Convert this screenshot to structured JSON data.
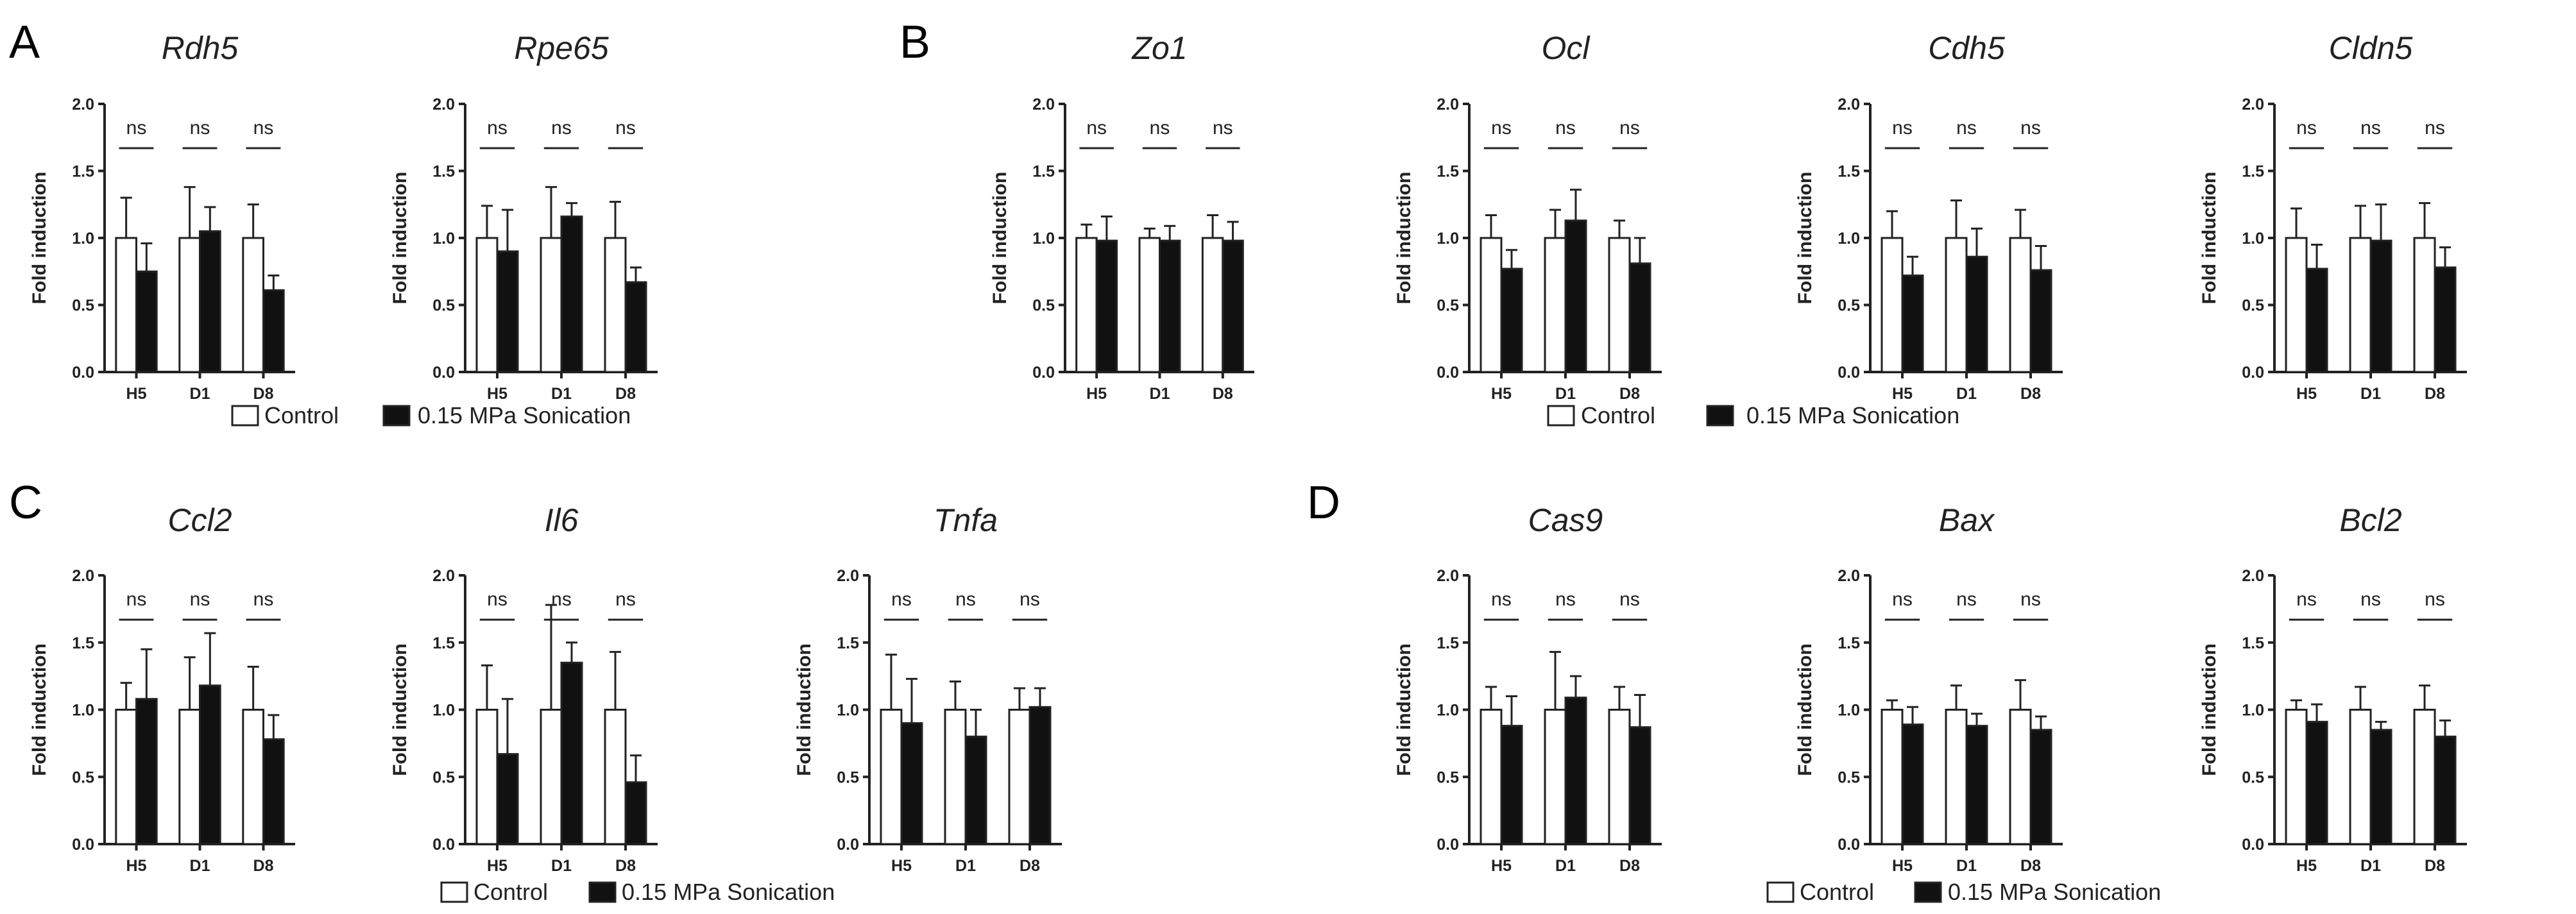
{
  "colors": {
    "control_fill": "#ffffff",
    "treated_fill": "#111111",
    "stroke": "#222222"
  },
  "panel_letters": [
    "A",
    "B",
    "C",
    "D"
  ],
  "legend": {
    "control_label": "Control",
    "treated_label": "0.15 MPa Sonication"
  },
  "chart_data": [
    {
      "type": "bar",
      "panel": "A",
      "title": "Rdh5",
      "ylabel": "Fold induction",
      "ylim": [
        0,
        2.0
      ],
      "yticks": [
        "0.0",
        "0.5",
        "1.0",
        "1.5",
        "2.0"
      ],
      "categories": [
        "H5",
        "D1",
        "D8"
      ],
      "series": [
        {
          "name": "Control",
          "values": [
            1.0,
            1.0,
            1.0
          ],
          "errors": [
            0.3,
            0.38,
            0.25
          ]
        },
        {
          "name": "0.15 MPa Sonication",
          "values": [
            0.75,
            1.05,
            0.61
          ],
          "errors": [
            0.21,
            0.18,
            0.11
          ]
        }
      ],
      "annotations": [
        "ns",
        "ns",
        "ns"
      ]
    },
    {
      "type": "bar",
      "panel": "A",
      "title": "Rpe65",
      "ylabel": "Fold induction",
      "ylim": [
        0,
        2.0
      ],
      "yticks": [
        "0.0",
        "0.5",
        "1.0",
        "1.5",
        "2.0"
      ],
      "categories": [
        "H5",
        "D1",
        "D8"
      ],
      "series": [
        {
          "name": "Control",
          "values": [
            1.0,
            1.0,
            1.0
          ],
          "errors": [
            0.24,
            0.38,
            0.27
          ]
        },
        {
          "name": "0.15 MPa Sonication",
          "values": [
            0.9,
            1.16,
            0.67
          ],
          "errors": [
            0.31,
            0.1,
            0.11
          ]
        }
      ],
      "annotations": [
        "ns",
        "ns",
        "ns"
      ]
    },
    {
      "type": "bar",
      "panel": "B",
      "title": "Zo1",
      "ylabel": "Fold induction",
      "ylim": [
        0,
        2.0
      ],
      "yticks": [
        "0.0",
        "0.5",
        "1.0",
        "1.5",
        "2.0"
      ],
      "categories": [
        "H5",
        "D1",
        "D8"
      ],
      "series": [
        {
          "name": "Control",
          "values": [
            1.0,
            1.0,
            1.0
          ],
          "errors": [
            0.1,
            0.07,
            0.17
          ]
        },
        {
          "name": "0.15 MPa Sonication",
          "values": [
            0.98,
            0.98,
            0.98
          ],
          "errors": [
            0.18,
            0.11,
            0.14
          ]
        }
      ],
      "annotations": [
        "ns",
        "ns",
        "ns"
      ]
    },
    {
      "type": "bar",
      "panel": "B",
      "title": "Ocl",
      "ylabel": "Fold induction",
      "ylim": [
        0,
        2.0
      ],
      "yticks": [
        "0.0",
        "0.5",
        "1.0",
        "1.5",
        "2.0"
      ],
      "categories": [
        "H5",
        "D1",
        "D8"
      ],
      "series": [
        {
          "name": "Control",
          "values": [
            1.0,
            1.0,
            1.0
          ],
          "errors": [
            0.17,
            0.21,
            0.13
          ]
        },
        {
          "name": "0.15 MPa Sonication",
          "values": [
            0.77,
            1.13,
            0.81
          ],
          "errors": [
            0.14,
            0.23,
            0.19
          ]
        }
      ],
      "annotations": [
        "ns",
        "ns",
        "ns"
      ]
    },
    {
      "type": "bar",
      "panel": "B",
      "title": "Cdh5",
      "ylabel": "Fold induction",
      "ylim": [
        0,
        2.0
      ],
      "yticks": [
        "0.0",
        "0.5",
        "1.0",
        "1.5",
        "2.0"
      ],
      "categories": [
        "H5",
        "D1",
        "D8"
      ],
      "series": [
        {
          "name": "Control",
          "values": [
            1.0,
            1.0,
            1.0
          ],
          "errors": [
            0.2,
            0.28,
            0.21
          ]
        },
        {
          "name": "0.15 MPa Sonication",
          "values": [
            0.72,
            0.86,
            0.76
          ],
          "errors": [
            0.14,
            0.21,
            0.18
          ]
        }
      ],
      "annotations": [
        "ns",
        "ns",
        "ns"
      ]
    },
    {
      "type": "bar",
      "panel": "B",
      "title": "Cldn5",
      "ylabel": "Fold induction",
      "ylim": [
        0,
        2.0
      ],
      "yticks": [
        "0.0",
        "0.5",
        "1.0",
        "1.5",
        "2.0"
      ],
      "categories": [
        "H5",
        "D1",
        "D8"
      ],
      "series": [
        {
          "name": "Control",
          "values": [
            1.0,
            1.0,
            1.0
          ],
          "errors": [
            0.22,
            0.24,
            0.26
          ]
        },
        {
          "name": "0.15 MPa Sonication",
          "values": [
            0.77,
            0.98,
            0.78
          ],
          "errors": [
            0.18,
            0.27,
            0.15
          ]
        }
      ],
      "annotations": [
        "ns",
        "ns",
        "ns"
      ]
    },
    {
      "type": "bar",
      "panel": "C",
      "title": "Ccl2",
      "ylabel": "Fold induction",
      "ylim": [
        0,
        2.0
      ],
      "yticks": [
        "0.0",
        "0.5",
        "1.0",
        "1.5",
        "2.0"
      ],
      "categories": [
        "H5",
        "D1",
        "D8"
      ],
      "series": [
        {
          "name": "Control",
          "values": [
            1.0,
            1.0,
            1.0
          ],
          "errors": [
            0.2,
            0.39,
            0.32
          ]
        },
        {
          "name": "0.15 MPa Sonication",
          "values": [
            1.08,
            1.18,
            0.78
          ],
          "errors": [
            0.37,
            0.39,
            0.18
          ]
        }
      ],
      "annotations": [
        "ns",
        "ns",
        "ns"
      ]
    },
    {
      "type": "bar",
      "panel": "C",
      "title": "Il6",
      "ylabel": "Fold induction",
      "ylim": [
        0,
        2.0
      ],
      "yticks": [
        "0.0",
        "0.5",
        "1.0",
        "1.5",
        "2.0"
      ],
      "categories": [
        "H5",
        "D1",
        "D8"
      ],
      "series": [
        {
          "name": "Control",
          "values": [
            1.0,
            1.0,
            1.0
          ],
          "errors": [
            0.33,
            0.78,
            0.43
          ]
        },
        {
          "name": "0.15 MPa Sonication",
          "values": [
            0.67,
            1.35,
            0.46
          ],
          "errors": [
            0.41,
            0.15,
            0.2
          ]
        }
      ],
      "annotations": [
        "ns",
        "ns",
        "ns"
      ]
    },
    {
      "type": "bar",
      "panel": "C",
      "title": "Tnfa",
      "ylabel": "Fold induction",
      "ylim": [
        0,
        2.0
      ],
      "yticks": [
        "0.0",
        "0.5",
        "1.0",
        "1.5",
        "2.0"
      ],
      "categories": [
        "H5",
        "D1",
        "D8"
      ],
      "series": [
        {
          "name": "Control",
          "values": [
            1.0,
            1.0,
            1.0
          ],
          "errors": [
            0.41,
            0.21,
            0.16
          ]
        },
        {
          "name": "0.15 MPa Sonication",
          "values": [
            0.9,
            0.8,
            1.02
          ],
          "errors": [
            0.33,
            0.2,
            0.14
          ]
        }
      ],
      "annotations": [
        "ns",
        "ns",
        "ns"
      ]
    },
    {
      "type": "bar",
      "panel": "D",
      "title": "Cas9",
      "ylabel": "Fold induction",
      "ylim": [
        0,
        2.0
      ],
      "yticks": [
        "0.0",
        "0.5",
        "1.0",
        "1.5",
        "2.0"
      ],
      "categories": [
        "H5",
        "D1",
        "D8"
      ],
      "series": [
        {
          "name": "Control",
          "values": [
            1.0,
            1.0,
            1.0
          ],
          "errors": [
            0.17,
            0.43,
            0.17
          ]
        },
        {
          "name": "0.15 MPa Sonication",
          "values": [
            0.88,
            1.09,
            0.87
          ],
          "errors": [
            0.22,
            0.16,
            0.24
          ]
        }
      ],
      "annotations": [
        "ns",
        "ns",
        "ns"
      ]
    },
    {
      "type": "bar",
      "panel": "D",
      "title": "Bax",
      "ylabel": "Fold induction",
      "ylim": [
        0,
        2.0
      ],
      "yticks": [
        "0.0",
        "0.5",
        "1.0",
        "1.5",
        "2.0"
      ],
      "categories": [
        "H5",
        "D1",
        "D8"
      ],
      "series": [
        {
          "name": "Control",
          "values": [
            1.0,
            1.0,
            1.0
          ],
          "errors": [
            0.07,
            0.18,
            0.22
          ]
        },
        {
          "name": "0.15 MPa Sonication",
          "values": [
            0.89,
            0.88,
            0.85
          ],
          "errors": [
            0.13,
            0.09,
            0.1
          ]
        }
      ],
      "annotations": [
        "ns",
        "ns",
        "ns"
      ]
    },
    {
      "type": "bar",
      "panel": "D",
      "title": "Bcl2",
      "ylabel": "Fold induction",
      "ylim": [
        0,
        2.0
      ],
      "yticks": [
        "0.0",
        "0.5",
        "1.0",
        "1.5",
        "2.0"
      ],
      "categories": [
        "H5",
        "D1",
        "D8"
      ],
      "series": [
        {
          "name": "Control",
          "values": [
            1.0,
            1.0,
            1.0
          ],
          "errors": [
            0.07,
            0.17,
            0.18
          ]
        },
        {
          "name": "0.15 MPa Sonication",
          "values": [
            0.91,
            0.85,
            0.8
          ],
          "errors": [
            0.13,
            0.06,
            0.12
          ]
        }
      ],
      "annotations": [
        "ns",
        "ns",
        "ns"
      ]
    }
  ]
}
